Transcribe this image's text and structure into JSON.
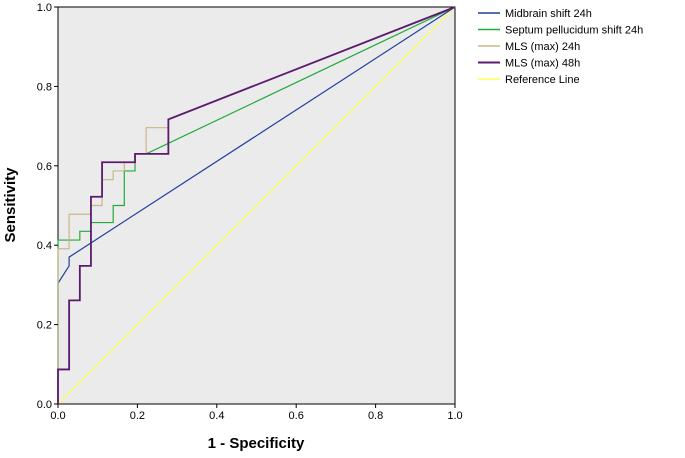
{
  "chart_data": {
    "type": "line",
    "subtype": "roc",
    "xlabel": "1 - Specificity",
    "ylabel": "Sensitivity",
    "xlim": [
      0,
      1
    ],
    "ylim": [
      0,
      1
    ],
    "x_ticks": [
      "0.0",
      "0.2",
      "0.4",
      "0.6",
      "0.8",
      "1.0"
    ],
    "y_ticks": [
      "0.0",
      "0.2",
      "0.4",
      "0.6",
      "0.8",
      "1.0"
    ],
    "grid": false,
    "plot_background": "#ebebeb",
    "legend_position": "right",
    "series": [
      {
        "name": "Midbrain shift 24h",
        "color": "#1f3f9c",
        "x": [
          0,
          0,
          0.028,
          0.028,
          1
        ],
        "y": [
          0,
          0.304,
          0.348,
          0.37,
          1
        ]
      },
      {
        "name": "Septum pellucidum shift 24h",
        "color": "#22aa3c",
        "x": [
          0,
          0,
          0.055,
          0.055,
          0.083,
          0.083,
          0.139,
          0.139,
          0.167,
          0.167,
          0.194,
          0.194,
          0.222,
          1
        ],
        "y": [
          0,
          0.413,
          0.413,
          0.435,
          0.435,
          0.457,
          0.457,
          0.5,
          0.5,
          0.587,
          0.587,
          0.63,
          0.63,
          1
        ]
      },
      {
        "name": "MLS (max) 24h",
        "color": "#c8b887",
        "x": [
          0,
          0,
          0.028,
          0.028,
          0.083,
          0.083,
          0.111,
          0.111,
          0.139,
          0.139,
          0.167,
          0.167,
          0.194,
          0.194,
          0.222,
          0.222,
          0.278,
          0.278,
          1
        ],
        "y": [
          0,
          0.391,
          0.391,
          0.478,
          0.478,
          0.5,
          0.5,
          0.565,
          0.565,
          0.587,
          0.587,
          0.609,
          0.609,
          0.63,
          0.63,
          0.696,
          0.696,
          0.717,
          1
        ]
      },
      {
        "name": "MLS (max)  48h",
        "color": "#5c1a6e",
        "x": [
          0,
          0,
          0.028,
          0.028,
          0.055,
          0.055,
          0.083,
          0.083,
          0.111,
          0.111,
          0.194,
          0.194,
          0.278,
          0.278,
          1
        ],
        "y": [
          0,
          0.087,
          0.087,
          0.261,
          0.261,
          0.348,
          0.348,
          0.522,
          0.522,
          0.609,
          0.609,
          0.63,
          0.63,
          0.717,
          1
        ]
      },
      {
        "name": "Reference Line",
        "color": "#ffff55",
        "x": [
          0,
          1
        ],
        "y": [
          0,
          1
        ]
      }
    ]
  }
}
